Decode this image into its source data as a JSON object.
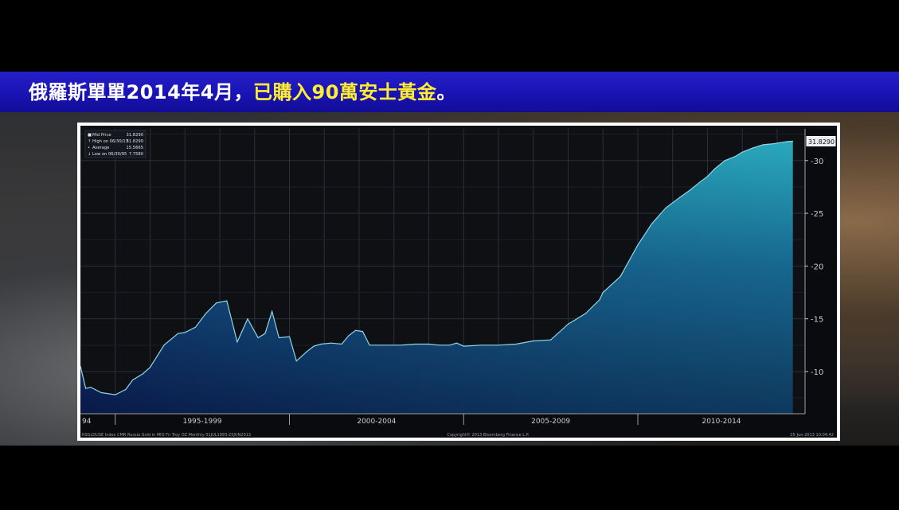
{
  "banner": {
    "part1": "俄羅斯單單2014年4月，",
    "part2": "已購入90萬安士黃金",
    "part3": "。",
    "color_white": "#ffffff",
    "color_yellow": "#ffee33",
    "background": "#1a13b4"
  },
  "chart_data": {
    "type": "area",
    "legend": [
      {
        "label": "Mid Price",
        "value": "31.8290"
      },
      {
        "label": "High on 06/30/13",
        "value": "31.8290"
      },
      {
        "label": "Average",
        "value": "15.5665"
      },
      {
        "label": "Low on 06/30/95",
        "value": "7.7580"
      }
    ],
    "legend_position": "top-left",
    "last_value_label": "31.8290",
    "x_period_labels": [
      "94",
      "1995-1999",
      "2000-2004",
      "2005-2009",
      "2010-2014"
    ],
    "y_ticks": [
      10,
      15,
      20,
      25,
      30
    ],
    "ylim": [
      6,
      33
    ],
    "xlim": [
      1994.0,
      2014.8
    ],
    "grid": true,
    "footer_left": "RSGLDUSE Index  CMR Russia Gold in MIO Fn Troy OZ  Monthly 01JUL1993-25JUN2013",
    "footer_center": "Copyright© 2013 Bloomberg Finance L.P.",
    "footer_right": "25-Jun-2013  10:04:42",
    "x": [
      1994.0,
      1994.15,
      1994.3,
      1994.6,
      1995.0,
      1995.3,
      1995.5,
      1995.8,
      1996.0,
      1996.4,
      1996.8,
      1997.0,
      1997.3,
      1997.6,
      1997.9,
      1998.2,
      1998.5,
      1998.8,
      1999.1,
      1999.3,
      1999.5,
      1999.7,
      2000.0,
      2000.2,
      2000.5,
      2000.7,
      2000.9,
      2001.2,
      2001.5,
      2001.7,
      2001.9,
      2002.1,
      2002.3,
      2002.5,
      2002.8,
      2003.2,
      2003.6,
      2004.0,
      2004.3,
      2004.6,
      2004.8,
      2005.0,
      2005.5,
      2006.0,
      2006.5,
      2007.0,
      2007.5,
      2008.0,
      2008.5,
      2008.9,
      2009.0,
      2009.5,
      2009.8,
      2010.0,
      2010.4,
      2010.8,
      2011.2,
      2011.5,
      2011.8,
      2012.0,
      2012.2,
      2012.5,
      2012.8,
      2013.0,
      2013.3,
      2013.6,
      2013.9,
      2014.1,
      2014.3,
      2014.45
    ],
    "y": [
      10.5,
      8.4,
      8.5,
      8.0,
      7.8,
      8.3,
      9.2,
      9.8,
      10.4,
      12.5,
      13.6,
      13.7,
      14.2,
      15.5,
      16.5,
      16.7,
      12.8,
      15.0,
      13.2,
      13.6,
      15.7,
      13.2,
      13.3,
      11.0,
      11.9,
      12.4,
      12.6,
      12.7,
      12.6,
      13.4,
      13.9,
      13.8,
      12.5,
      12.5,
      12.5,
      12.5,
      12.6,
      12.6,
      12.5,
      12.5,
      12.7,
      12.4,
      12.5,
      12.5,
      12.6,
      12.9,
      13.0,
      14.5,
      15.5,
      16.8,
      17.5,
      19.0,
      20.8,
      22.0,
      24.0,
      25.5,
      26.5,
      27.2,
      28.0,
      28.5,
      29.2,
      30.0,
      30.4,
      30.8,
      31.2,
      31.5,
      31.6,
      31.7,
      31.8,
      31.83
    ]
  }
}
